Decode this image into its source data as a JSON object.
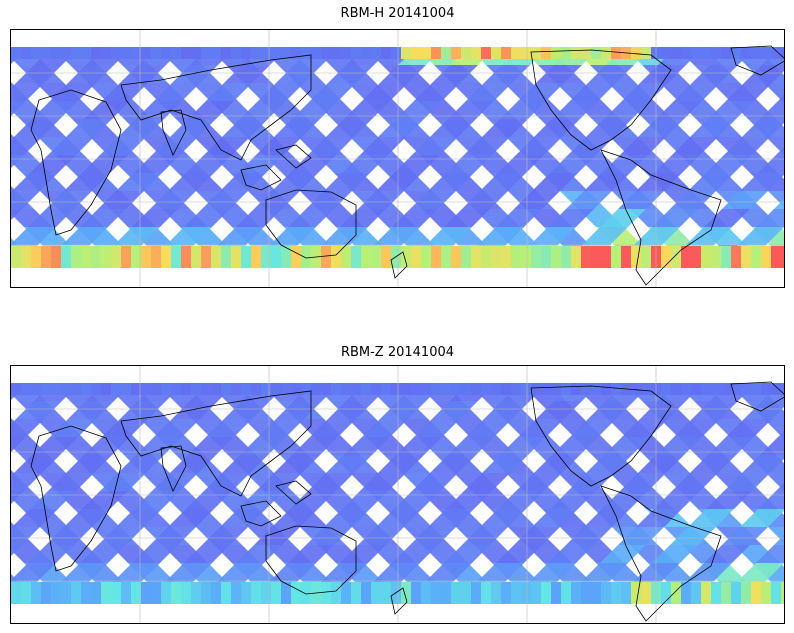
{
  "panels": [
    {
      "title": "RBM-H 20141004",
      "field": "H"
    },
    {
      "title": "RBM-Z 20141004",
      "field": "Z"
    }
  ],
  "colormap": "jet",
  "colors": {
    "low": "#6666ee",
    "mid": "#66ddee",
    "high": "#ff5555"
  },
  "gridlines": true,
  "coastlines": true
}
